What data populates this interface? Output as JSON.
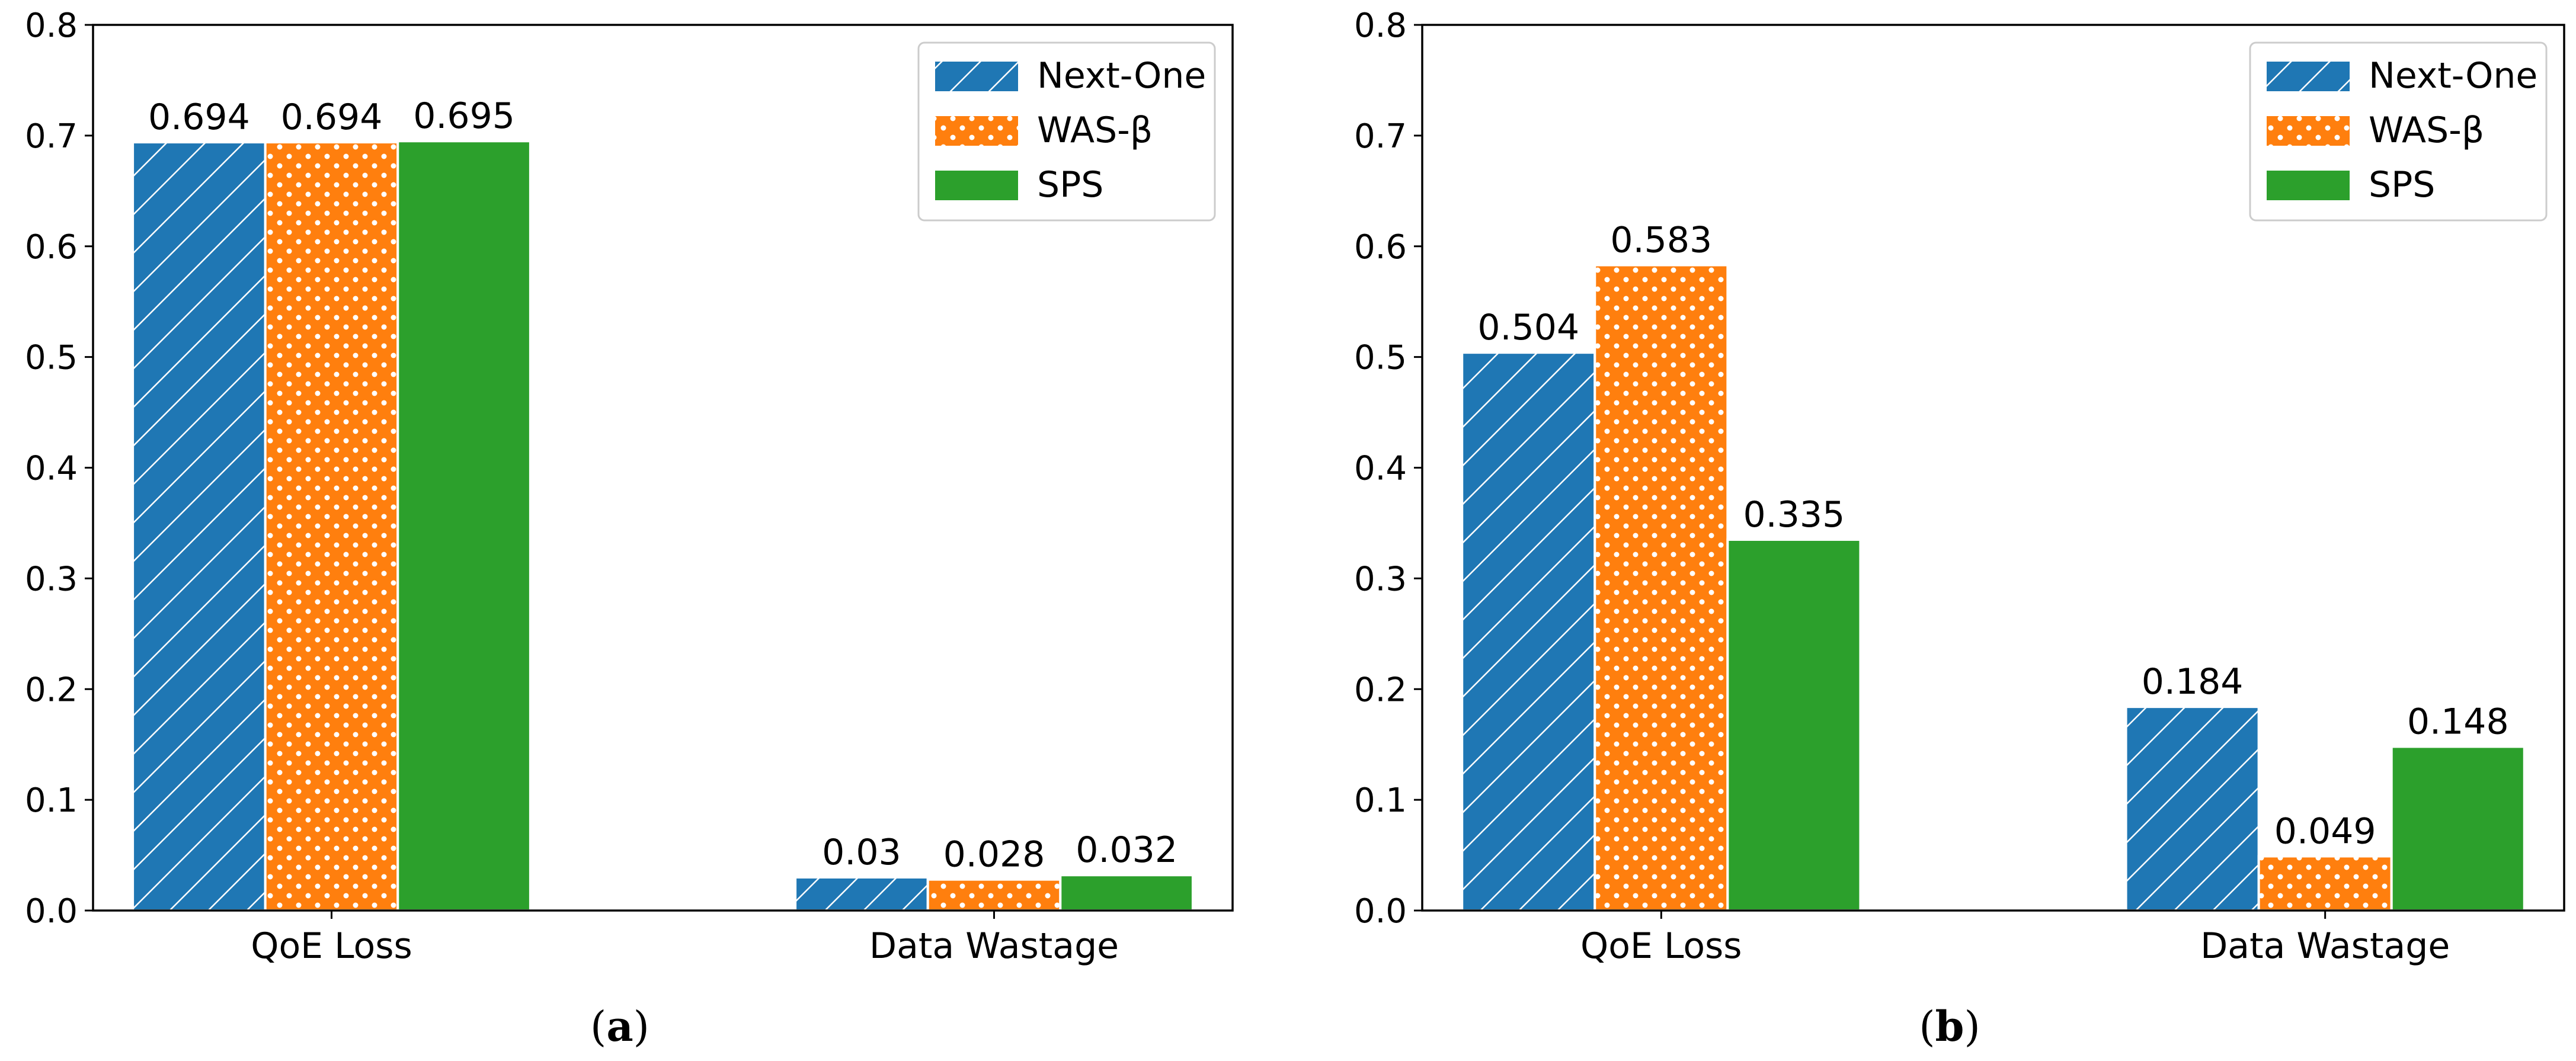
{
  "chart_data": [
    {
      "type": "bar",
      "panel": "a",
      "caption": "a",
      "categories": [
        "QoE Loss",
        "Data Wastage"
      ],
      "series": [
        {
          "name": "Next-One",
          "values": [
            0.694,
            0.03
          ],
          "labels": [
            "0.694",
            "0.03"
          ],
          "color": "#1f77b4",
          "pattern": "diagonal-hatch"
        },
        {
          "name": "WAS-β",
          "values": [
            0.694,
            0.028
          ],
          "labels": [
            "0.694",
            "0.028"
          ],
          "color": "#ff7f0e",
          "pattern": "dots"
        },
        {
          "name": "SPS",
          "values": [
            0.695,
            0.032
          ],
          "labels": [
            "0.695",
            "0.032"
          ],
          "color": "#2ca02c",
          "pattern": "solid"
        }
      ],
      "yticks": [
        "0.0",
        "0.1",
        "0.2",
        "0.3",
        "0.4",
        "0.5",
        "0.6",
        "0.7",
        "0.8"
      ],
      "ylim": [
        0,
        0.8
      ],
      "xlabel": "",
      "ylabel": "",
      "legend_position": "top-right",
      "grid": false
    },
    {
      "type": "bar",
      "panel": "b",
      "caption": "b",
      "categories": [
        "QoE Loss",
        "Data Wastage"
      ],
      "series": [
        {
          "name": "Next-One",
          "values": [
            0.504,
            0.184
          ],
          "labels": [
            "0.504",
            "0.184"
          ],
          "color": "#1f77b4",
          "pattern": "diagonal-hatch"
        },
        {
          "name": "WAS-β",
          "values": [
            0.583,
            0.049
          ],
          "labels": [
            "0.583",
            "0.049"
          ],
          "color": "#ff7f0e",
          "pattern": "dots"
        },
        {
          "name": "SPS",
          "values": [
            0.335,
            0.148
          ],
          "labels": [
            "0.335",
            "0.148"
          ],
          "color": "#2ca02c",
          "pattern": "solid"
        }
      ],
      "yticks": [
        "0.0",
        "0.1",
        "0.2",
        "0.3",
        "0.4",
        "0.5",
        "0.6",
        "0.7",
        "0.8"
      ],
      "ylim": [
        0,
        0.8
      ],
      "xlabel": "",
      "ylabel": "",
      "legend_position": "top-right",
      "grid": false
    }
  ]
}
